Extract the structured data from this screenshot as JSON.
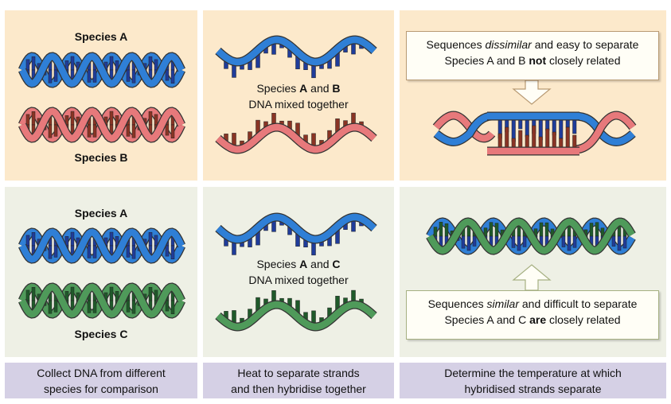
{
  "colors": {
    "species_a": "#2f7fd6",
    "species_a_dark": "#1f3c9a",
    "species_b": "#e7797b",
    "species_b_dark": "#8a3424",
    "species_c": "#4f9a5a",
    "species_c_dark": "#1f5a2a",
    "peach_bg": "#fce9cb",
    "mint_bg": "#eef0e5",
    "caption_bg": "#d5d0e5"
  },
  "column1": {
    "species_a": "Species A",
    "species_b": "Species B",
    "species_a_2": "Species A",
    "species_c": "Species C",
    "caption_line1": "Collect DNA from different",
    "caption_line2": "species for comparison"
  },
  "column2": {
    "mix_top_prefix": "Species ",
    "mix_top_a": "A",
    "mix_top_and": " and ",
    "mix_top_b": "B",
    "mix_top_line2": "DNA mixed together",
    "mix_bottom_prefix": "Species ",
    "mix_bottom_a": "A",
    "mix_bottom_and": " and ",
    "mix_bottom_c": "C",
    "mix_bottom_line2": "DNA mixed together",
    "caption_line1": "Heat to separate strands",
    "caption_line2": "and then hybridise together"
  },
  "column3": {
    "top_box_line1_pre": "Sequences ",
    "top_box_line1_em": "dissimilar",
    "top_box_line1_post": " and easy to separate",
    "top_box_line2_pre": "Species A and B ",
    "top_box_line2_bold": "not",
    "top_box_line2_post": " closely related",
    "bottom_box_line1_pre": "Sequences ",
    "bottom_box_line1_em": "similar",
    "bottom_box_line1_post": " and difficult to separate",
    "bottom_box_line2_pre": "Species A and C ",
    "bottom_box_line2_bold": "are",
    "bottom_box_line2_post": " closely related",
    "caption_line1": "Determine the temperature at which",
    "caption_line2": "hybridised strands separate"
  }
}
